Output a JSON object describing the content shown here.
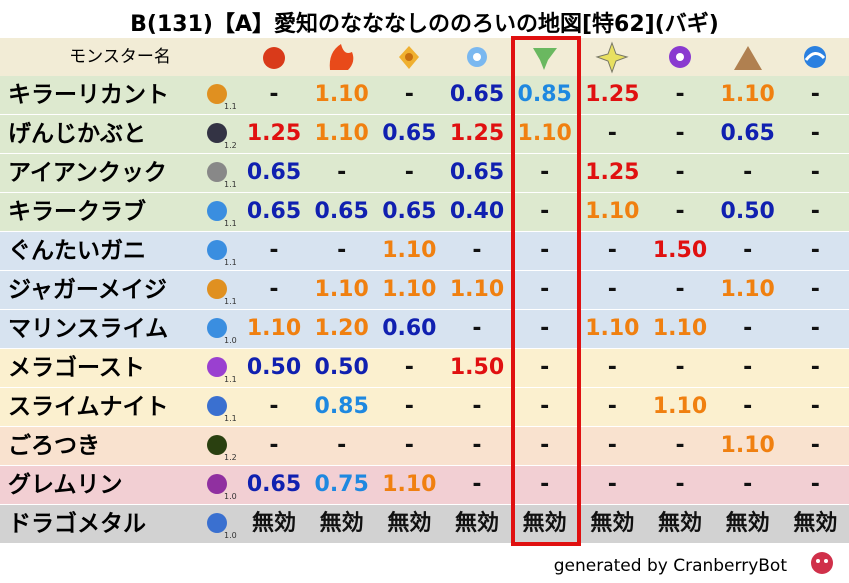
{
  "title": "B(131)【A】愛知のなななしののろいの地図[特62](バギ)",
  "header": {
    "name": "モンスター名"
  },
  "rows": [
    {
      "name": "キラーリカント",
      "size": "1.1",
      "cells": [
        "-",
        "1.10",
        "-",
        "0.65",
        "0.85",
        "1.25",
        "-",
        "1.10",
        "-"
      ]
    },
    {
      "name": "げんじかぶと",
      "size": "1.2",
      "cells": [
        "1.25",
        "1.10",
        "0.65",
        "1.25",
        "1.10",
        "-",
        "-",
        "0.65",
        "-"
      ]
    },
    {
      "name": "アイアンクック",
      "size": "1.1",
      "cells": [
        "0.65",
        "-",
        "-",
        "0.65",
        "-",
        "1.25",
        "-",
        "-",
        "-"
      ]
    },
    {
      "name": "キラークラブ",
      "size": "1.1",
      "cells": [
        "0.65",
        "0.65",
        "0.65",
        "0.40",
        "-",
        "1.10",
        "-",
        "0.50",
        "-"
      ]
    },
    {
      "name": "ぐんたいガニ",
      "size": "1.1",
      "cells": [
        "-",
        "-",
        "1.10",
        "-",
        "-",
        "-",
        "1.50",
        "-",
        "-"
      ]
    },
    {
      "name": "ジャガーメイジ",
      "size": "1.1",
      "cells": [
        "-",
        "1.10",
        "1.10",
        "1.10",
        "-",
        "-",
        "-",
        "1.10",
        "-"
      ]
    },
    {
      "name": "マリンスライム",
      "size": "1.0",
      "cells": [
        "1.10",
        "1.20",
        "0.60",
        "-",
        "-",
        "1.10",
        "1.10",
        "-",
        "-"
      ]
    },
    {
      "name": "メラゴースト",
      "size": "1.1",
      "cells": [
        "0.50",
        "0.50",
        "-",
        "1.50",
        "-",
        "-",
        "-",
        "-",
        "-"
      ]
    },
    {
      "name": "スライムナイト",
      "size": "1.1",
      "cells": [
        "-",
        "0.85",
        "-",
        "-",
        "-",
        "-",
        "1.10",
        "-",
        "-"
      ]
    },
    {
      "name": "ごろつき",
      "size": "1.2",
      "cells": [
        "-",
        "-",
        "-",
        "-",
        "-",
        "-",
        "-",
        "1.10",
        "-"
      ]
    },
    {
      "name": "グレムリン",
      "size": "1.0",
      "cells": [
        "0.65",
        "0.75",
        "1.10",
        "-",
        "-",
        "-",
        "-",
        "-",
        "-"
      ]
    },
    {
      "name": "ドラゴメタル",
      "size": "1.0",
      "cells": [
        "無効",
        "無効",
        "無効",
        "無効",
        "無効",
        "無効",
        "無効",
        "無効",
        "無効"
      ]
    }
  ],
  "footer": "generated by CranberryBot"
}
